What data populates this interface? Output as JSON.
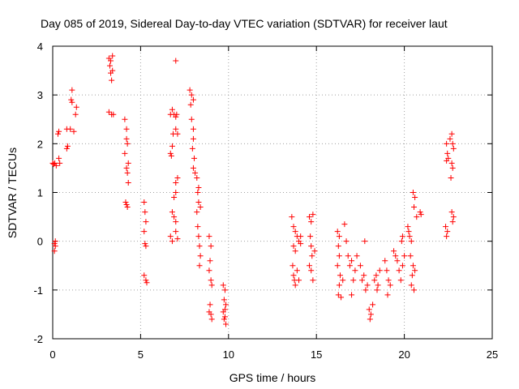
{
  "chart_data": {
    "type": "scatter",
    "title": "Day 085 of 2019, Sidereal Day-to-day VTEC variation (SDTVAR) for receiver laut",
    "xlabel": "GPS time / hours",
    "ylabel": "SDTVAR / TECUs",
    "xlim": [
      0,
      25
    ],
    "ylim": [
      -2,
      4
    ],
    "x_ticks": [
      "0",
      "5",
      "10",
      "15",
      "20",
      "25"
    ],
    "y_ticks": [
      "-2",
      "-1",
      "0",
      "1",
      "2",
      "3",
      "4"
    ],
    "grid": true,
    "marker": "+",
    "colors": {
      "points": "#ff0000",
      "grid": "#a0a0a0",
      "axes": "#000000"
    },
    "series": [
      {
        "name": "SDTVAR",
        "points": [
          [
            0.0,
            1.6
          ],
          [
            0.05,
            1.58
          ],
          [
            0.1,
            -0.05
          ],
          [
            0.1,
            -0.2
          ],
          [
            0.12,
            1.6
          ],
          [
            0.15,
            -0.1
          ],
          [
            0.15,
            0.0
          ],
          [
            0.2,
            1.55
          ],
          [
            0.3,
            2.2
          ],
          [
            0.35,
            2.25
          ],
          [
            0.4,
            1.6
          ],
          [
            0.35,
            1.7
          ],
          [
            0.8,
            2.3
          ],
          [
            0.8,
            1.9
          ],
          [
            0.85,
            1.95
          ],
          [
            1.0,
            2.3
          ],
          [
            1.05,
            2.9
          ],
          [
            1.1,
            3.1
          ],
          [
            1.1,
            2.85
          ],
          [
            1.2,
            2.25
          ],
          [
            1.3,
            2.6
          ],
          [
            1.35,
            2.75
          ],
          [
            3.2,
            3.75
          ],
          [
            3.25,
            3.6
          ],
          [
            3.3,
            3.45
          ],
          [
            3.35,
            3.3
          ],
          [
            3.3,
            3.7
          ],
          [
            3.4,
            3.5
          ],
          [
            3.35,
            2.6
          ],
          [
            3.45,
            2.6
          ],
          [
            3.2,
            2.65
          ],
          [
            3.4,
            3.8
          ],
          [
            4.1,
            2.5
          ],
          [
            4.2,
            2.3
          ],
          [
            4.2,
            2.1
          ],
          [
            4.25,
            2.0
          ],
          [
            4.1,
            1.8
          ],
          [
            4.3,
            1.6
          ],
          [
            4.2,
            1.5
          ],
          [
            4.25,
            1.4
          ],
          [
            4.3,
            1.2
          ],
          [
            4.15,
            0.8
          ],
          [
            4.25,
            0.7
          ],
          [
            4.2,
            0.75
          ],
          [
            5.2,
            0.8
          ],
          [
            5.25,
            0.6
          ],
          [
            5.3,
            0.4
          ],
          [
            5.2,
            0.2
          ],
          [
            5.25,
            -0.05
          ],
          [
            5.3,
            -0.1
          ],
          [
            5.2,
            -0.7
          ],
          [
            5.3,
            -0.8
          ],
          [
            5.35,
            -0.85
          ],
          [
            6.7,
            2.6
          ],
          [
            6.8,
            2.7
          ],
          [
            6.9,
            2.6
          ],
          [
            7.0,
            2.55
          ],
          [
            7.05,
            2.6
          ],
          [
            6.85,
            2.2
          ],
          [
            7.0,
            2.3
          ],
          [
            7.1,
            2.2
          ],
          [
            6.7,
            1.8
          ],
          [
            6.75,
            1.75
          ],
          [
            6.8,
            1.95
          ],
          [
            6.9,
            0.9
          ],
          [
            7.0,
            1.2
          ],
          [
            7.1,
            1.3
          ],
          [
            7.0,
            1.0
          ],
          [
            6.8,
            0.6
          ],
          [
            6.9,
            0.5
          ],
          [
            7.0,
            0.4
          ],
          [
            6.7,
            0.1
          ],
          [
            6.8,
            0.0
          ],
          [
            7.0,
            0.2
          ],
          [
            7.1,
            0.05
          ],
          [
            7.0,
            3.7
          ],
          [
            7.8,
            3.1
          ],
          [
            7.9,
            3.0
          ],
          [
            7.85,
            2.8
          ],
          [
            8.0,
            2.9
          ],
          [
            7.9,
            2.5
          ],
          [
            8.0,
            2.3
          ],
          [
            8.0,
            2.1
          ],
          [
            7.95,
            1.9
          ],
          [
            8.05,
            1.7
          ],
          [
            8.0,
            1.5
          ],
          [
            8.1,
            1.4
          ],
          [
            8.2,
            1.3
          ],
          [
            8.3,
            1.1
          ],
          [
            8.25,
            1.0
          ],
          [
            8.3,
            0.8
          ],
          [
            8.4,
            0.7
          ],
          [
            8.2,
            0.6
          ],
          [
            8.25,
            0.3
          ],
          [
            8.3,
            0.1
          ],
          [
            8.35,
            -0.1
          ],
          [
            8.4,
            -0.3
          ],
          [
            8.35,
            -0.5
          ],
          [
            8.9,
            0.1
          ],
          [
            9.0,
            -0.1
          ],
          [
            8.95,
            -0.4
          ],
          [
            8.9,
            -0.6
          ],
          [
            9.0,
            -0.8
          ],
          [
            9.05,
            -0.9
          ],
          [
            8.95,
            -1.3
          ],
          [
            9.0,
            -1.5
          ],
          [
            9.05,
            -1.6
          ],
          [
            8.9,
            -1.45
          ],
          [
            9.7,
            -0.9
          ],
          [
            9.8,
            -1.0
          ],
          [
            9.75,
            -1.2
          ],
          [
            9.85,
            -1.3
          ],
          [
            9.7,
            -1.45
          ],
          [
            9.8,
            -1.55
          ],
          [
            9.75,
            -1.6
          ],
          [
            9.85,
            -1.7
          ],
          [
            9.8,
            -1.4
          ],
          [
            13.6,
            0.5
          ],
          [
            13.7,
            0.3
          ],
          [
            13.8,
            0.2
          ],
          [
            13.9,
            0.1
          ],
          [
            14.0,
            0.0
          ],
          [
            13.7,
            -0.1
          ],
          [
            13.8,
            -0.2
          ],
          [
            13.65,
            -0.5
          ],
          [
            13.7,
            -0.7
          ],
          [
            13.75,
            -0.8
          ],
          [
            13.8,
            -0.9
          ],
          [
            13.9,
            -0.6
          ],
          [
            14.0,
            -0.8
          ],
          [
            14.1,
            0.1
          ],
          [
            14.1,
            -0.05
          ],
          [
            14.6,
            0.5
          ],
          [
            14.7,
            0.4
          ],
          [
            14.8,
            0.55
          ],
          [
            14.65,
            0.1
          ],
          [
            14.7,
            -0.1
          ],
          [
            14.75,
            -0.3
          ],
          [
            14.6,
            -0.5
          ],
          [
            14.7,
            -0.6
          ],
          [
            14.8,
            -0.8
          ],
          [
            14.9,
            -0.2
          ],
          [
            16.2,
            0.2
          ],
          [
            16.3,
            0.1
          ],
          [
            16.25,
            -0.1
          ],
          [
            16.3,
            -0.3
          ],
          [
            16.2,
            -0.5
          ],
          [
            16.35,
            -0.7
          ],
          [
            16.3,
            -0.9
          ],
          [
            16.25,
            -1.1
          ],
          [
            16.4,
            -1.15
          ],
          [
            16.5,
            -0.8
          ],
          [
            16.6,
            0.35
          ],
          [
            16.7,
            0.0
          ],
          [
            16.8,
            -0.3
          ],
          [
            16.9,
            -0.5
          ],
          [
            17.0,
            -0.4
          ],
          [
            17.1,
            -0.8
          ],
          [
            17.0,
            -1.1
          ],
          [
            17.2,
            -0.6
          ],
          [
            17.3,
            -0.3
          ],
          [
            17.5,
            -0.5
          ],
          [
            17.6,
            -0.8
          ],
          [
            17.7,
            -0.7
          ],
          [
            17.8,
            -1.0
          ],
          [
            17.9,
            -0.9
          ],
          [
            18.0,
            -1.4
          ],
          [
            18.1,
            -1.5
          ],
          [
            18.05,
            -1.6
          ],
          [
            18.2,
            -1.3
          ],
          [
            17.75,
            0.0
          ],
          [
            18.3,
            -0.8
          ],
          [
            18.4,
            -0.7
          ],
          [
            18.5,
            -0.9
          ],
          [
            18.45,
            -1.0
          ],
          [
            18.6,
            -0.6
          ],
          [
            18.9,
            -0.4
          ],
          [
            19.0,
            -0.6
          ],
          [
            19.1,
            -0.8
          ],
          [
            19.05,
            -1.1
          ],
          [
            19.2,
            -0.9
          ],
          [
            19.4,
            -0.2
          ],
          [
            19.5,
            -0.3
          ],
          [
            19.6,
            -0.4
          ],
          [
            19.7,
            -0.6
          ],
          [
            19.8,
            -0.8
          ],
          [
            19.9,
            -0.5
          ],
          [
            20.0,
            -0.3
          ],
          [
            19.85,
            0.0
          ],
          [
            19.9,
            0.1
          ],
          [
            20.2,
            0.3
          ],
          [
            20.25,
            0.2
          ],
          [
            20.3,
            0.1
          ],
          [
            20.4,
            0.0
          ],
          [
            20.35,
            -0.3
          ],
          [
            20.5,
            -0.5
          ],
          [
            20.45,
            -0.7
          ],
          [
            20.4,
            -0.9
          ],
          [
            20.55,
            -1.0
          ],
          [
            20.6,
            -0.6
          ],
          [
            20.5,
            1.0
          ],
          [
            20.6,
            0.9
          ],
          [
            20.55,
            0.7
          ],
          [
            20.7,
            0.5
          ],
          [
            20.9,
            0.6
          ],
          [
            20.95,
            0.55
          ],
          [
            22.4,
            2.0
          ],
          [
            22.45,
            1.8
          ],
          [
            22.5,
            1.7
          ],
          [
            22.4,
            1.65
          ],
          [
            22.35,
            0.3
          ],
          [
            22.45,
            0.2
          ],
          [
            22.4,
            0.1
          ],
          [
            22.6,
            2.1
          ],
          [
            22.7,
            2.2
          ],
          [
            22.75,
            2.0
          ],
          [
            22.8,
            1.9
          ],
          [
            22.7,
            1.6
          ],
          [
            22.75,
            1.5
          ],
          [
            22.65,
            1.3
          ],
          [
            22.7,
            0.6
          ],
          [
            22.8,
            0.5
          ],
          [
            22.75,
            0.4
          ]
        ]
      }
    ]
  }
}
